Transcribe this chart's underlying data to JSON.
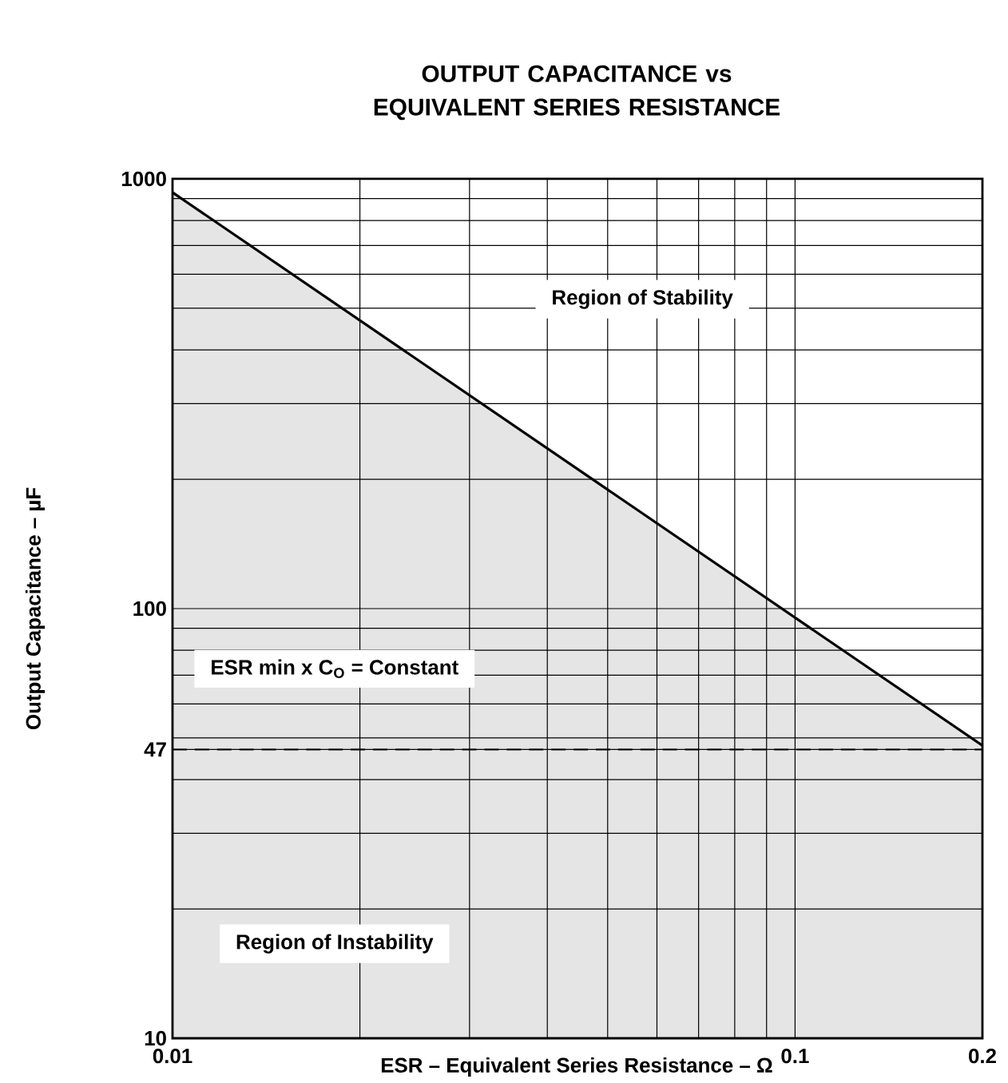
{
  "chart_data": {
    "type": "area",
    "title": "OUTPUT CAPACITANCE vs EQUIVALENT SERIES RESISTANCE",
    "xlabel": "ESR – Equivalent Series Resistance – Ω",
    "ylabel": "Output Capacitance – µF",
    "x": [
      0.01,
      0.2
    ],
    "series": [
      {
        "color": "#000000",
        "values": [
          930,
          48
        ]
      }
    ],
    "log": "xy",
    "xlim": [
      0.01,
      0.2
    ],
    "ylim": [
      10,
      1000
    ],
    "xticks": [
      0.01,
      0.1,
      0.2
    ],
    "yticks": [
      10,
      47,
      100,
      1000
    ],
    "grid": true,
    "ref_lines": [
      {
        "axis": "y",
        "value": 47,
        "line_style": "dashed",
        "color": "#000000"
      }
    ],
    "annotations": [
      "Region of Stability",
      "ESR min x C$_{O}$ = Constant",
      "Region of Instability"
    ]
  }
}
